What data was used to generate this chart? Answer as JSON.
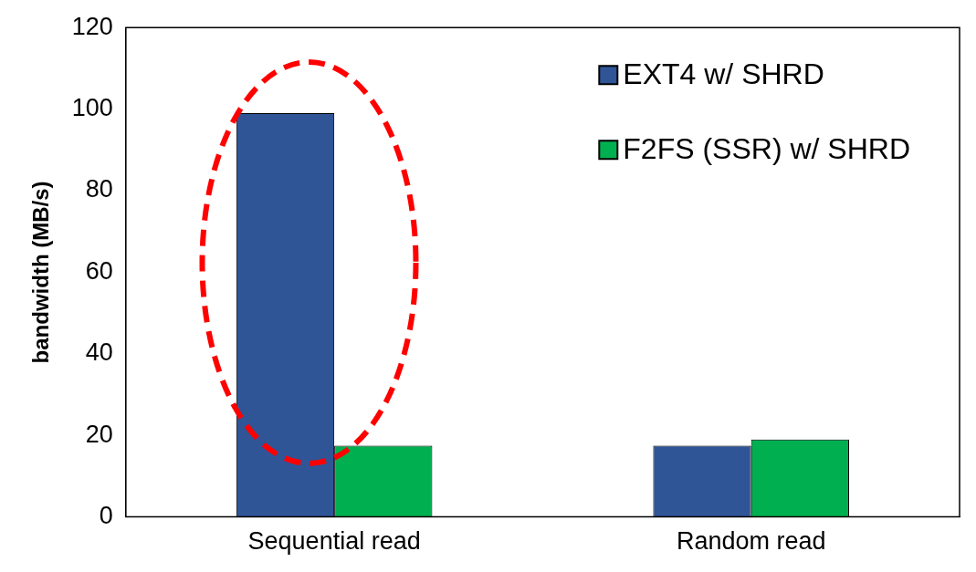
{
  "chart_data": {
    "type": "bar",
    "ylabel": "bandwidth (MB/s)",
    "categories": [
      "Sequential read",
      "Random read"
    ],
    "series": [
      {
        "name": "EXT4 w/ SHRD",
        "color": "#2f5597",
        "values": [
          99,
          17.5
        ]
      },
      {
        "name": "F2FS (SSR) w/ SHRD",
        "color": "#00b050",
        "values": [
          17.5,
          19
        ]
      }
    ],
    "ylim": [
      0,
      120
    ],
    "yticks": [
      0,
      20,
      40,
      60,
      80,
      100,
      120
    ],
    "grid": false,
    "legend": "top right"
  }
}
